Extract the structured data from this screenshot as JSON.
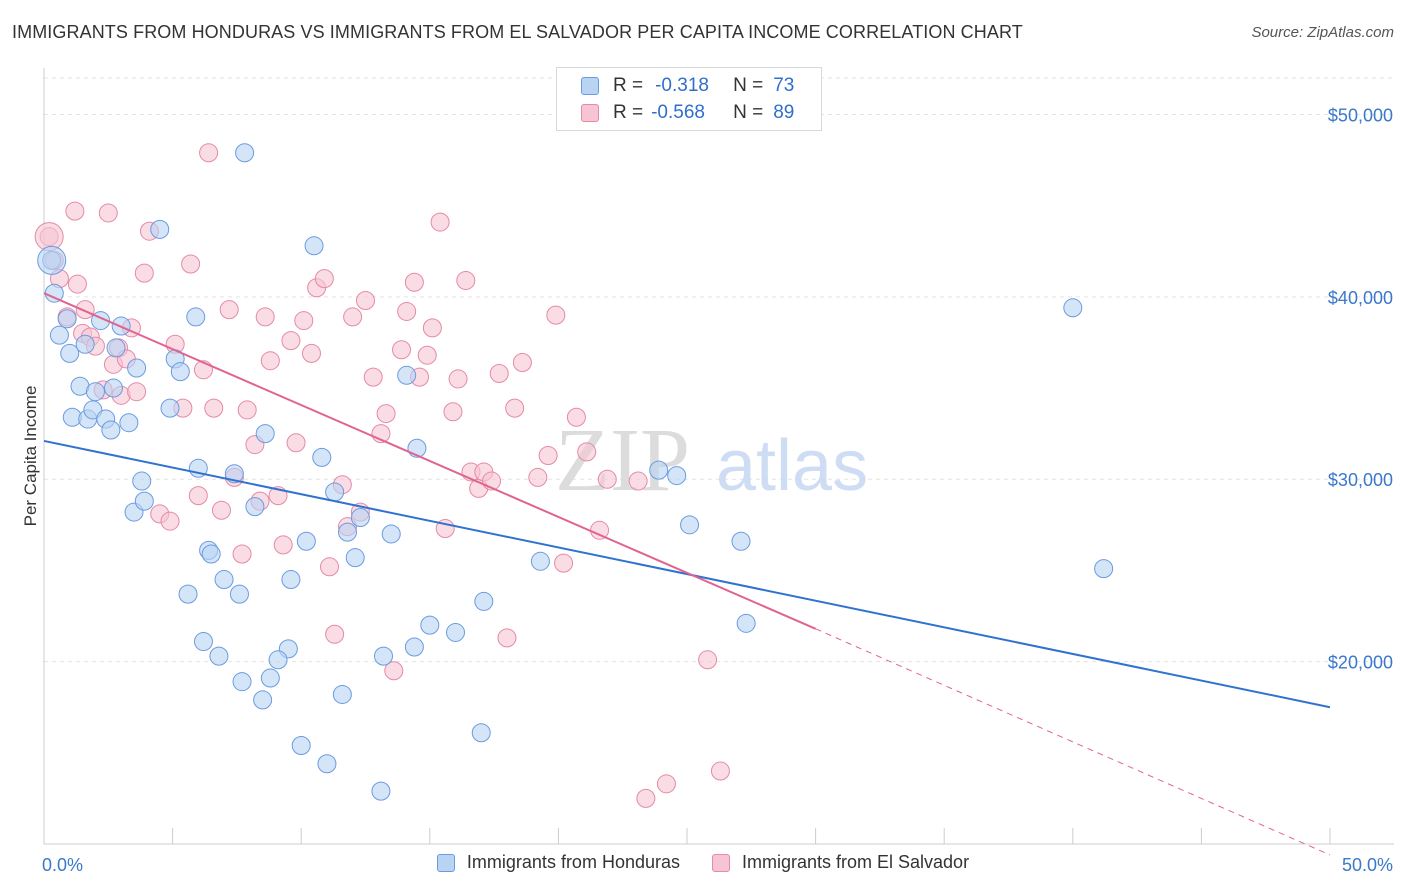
{
  "header": {
    "title": "IMMIGRANTS FROM HONDURAS VS IMMIGRANTS FROM EL SALVADOR PER CAPITA INCOME CORRELATION CHART",
    "source": "Source: ZipAtlas.com"
  },
  "watermark": {
    "zip": "ZIP",
    "atlas": "atlas"
  },
  "legend_top": {
    "rows": [
      {
        "r_label": "R =",
        "r_value": "-0.318",
        "n_label": "N =",
        "n_value": "73"
      },
      {
        "r_label": "R =",
        "r_value": "-0.568",
        "n_label": "N =",
        "n_value": "89"
      }
    ]
  },
  "legend_bottom": {
    "items": [
      {
        "label": "Immigrants from Honduras"
      },
      {
        "label": "Immigrants from El Salvador"
      }
    ]
  },
  "colors": {
    "honduras_fill": "#b9d3f3",
    "honduras_stroke": "#6a9be0",
    "honduras_line": "#2f72d0",
    "elsalvador_fill": "#f7c4d3",
    "elsalvador_stroke": "#e58aa7",
    "elsalvador_line": "#e0648f",
    "tick_label": "#3a78cc",
    "grid": "#e3e3e3"
  },
  "chart_data": {
    "type": "scatter",
    "title": "IMMIGRANTS FROM HONDURAS VS IMMIGRANTS FROM EL SALVADOR PER CAPITA INCOME CORRELATION CHART",
    "ylabel": "Per Capita Income",
    "xlabel": "",
    "xlim": [
      0,
      50
    ],
    "ylim": [
      10000,
      52000
    ],
    "x_tick_labels": [
      "0.0%",
      "50.0%"
    ],
    "y_ticks": [
      20000,
      30000,
      40000,
      50000
    ],
    "y_tick_labels": [
      "$20,000",
      "$30,000",
      "$40,000",
      "$50,000"
    ],
    "grid": true,
    "legend_position": "top-center",
    "series": [
      {
        "name": "Immigrants from Honduras",
        "R": -0.318,
        "N": 73,
        "trend": {
          "x0": 0,
          "y0": 32100,
          "x1": 50,
          "y1": 17500
        },
        "points": [
          [
            0.3,
            42000
          ],
          [
            0.4,
            40200
          ],
          [
            0.6,
            37900
          ],
          [
            0.9,
            38800
          ],
          [
            1.0,
            36900
          ],
          [
            1.1,
            33400
          ],
          [
            1.4,
            35100
          ],
          [
            1.6,
            37400
          ],
          [
            1.7,
            33300
          ],
          [
            1.9,
            33800
          ],
          [
            2.0,
            34800
          ],
          [
            2.2,
            38700
          ],
          [
            2.4,
            33300
          ],
          [
            2.6,
            32700
          ],
          [
            2.7,
            35000
          ],
          [
            2.8,
            37200
          ],
          [
            3.0,
            38400
          ],
          [
            3.3,
            33100
          ],
          [
            3.5,
            28200
          ],
          [
            3.6,
            36100
          ],
          [
            3.8,
            29900
          ],
          [
            3.9,
            28800
          ],
          [
            4.5,
            43700
          ],
          [
            4.9,
            33900
          ],
          [
            5.1,
            36600
          ],
          [
            5.3,
            35900
          ],
          [
            5.6,
            23700
          ],
          [
            5.9,
            38900
          ],
          [
            6.0,
            30600
          ],
          [
            6.2,
            21100
          ],
          [
            6.4,
            26100
          ],
          [
            6.5,
            25900
          ],
          [
            6.8,
            20300
          ],
          [
            7.0,
            24500
          ],
          [
            7.4,
            30300
          ],
          [
            7.6,
            23700
          ],
          [
            7.7,
            18900
          ],
          [
            7.8,
            47900
          ],
          [
            8.2,
            28500
          ],
          [
            8.5,
            17900
          ],
          [
            8.6,
            32500
          ],
          [
            8.8,
            19100
          ],
          [
            9.5,
            20700
          ],
          [
            9.6,
            24500
          ],
          [
            9.1,
            20100
          ],
          [
            10.0,
            15400
          ],
          [
            10.2,
            26600
          ],
          [
            10.5,
            42800
          ],
          [
            10.8,
            31200
          ],
          [
            11.0,
            14400
          ],
          [
            11.3,
            29300
          ],
          [
            11.6,
            18200
          ],
          [
            11.8,
            27100
          ],
          [
            12.1,
            25700
          ],
          [
            12.3,
            27900
          ],
          [
            13.1,
            12900
          ],
          [
            13.2,
            20300
          ],
          [
            13.5,
            27000
          ],
          [
            14.1,
            35700
          ],
          [
            14.4,
            20800
          ],
          [
            14.5,
            31700
          ],
          [
            15.0,
            22000
          ],
          [
            16.0,
            21600
          ],
          [
            17.1,
            23300
          ],
          [
            17.0,
            16100
          ],
          [
            19.3,
            25500
          ],
          [
            23.9,
            30500
          ],
          [
            24.6,
            30200
          ],
          [
            25.1,
            27500
          ],
          [
            27.3,
            22100
          ],
          [
            27.1,
            26600
          ],
          [
            40.0,
            39400
          ],
          [
            41.2,
            25100
          ]
        ]
      },
      {
        "name": "Immigrants from El Salvador",
        "R": -0.568,
        "N": 89,
        "trend": {
          "x0": 0,
          "y0": 40200,
          "x1": 30,
          "y1": 21800
        },
        "trend_dashed": {
          "x0": 30,
          "y0": 21800,
          "x1": 50,
          "y1": 9400
        },
        "points": [
          [
            0.2,
            43300
          ],
          [
            0.4,
            42000
          ],
          [
            0.6,
            41000
          ],
          [
            0.9,
            38900
          ],
          [
            1.2,
            44700
          ],
          [
            1.3,
            40700
          ],
          [
            1.5,
            38000
          ],
          [
            1.6,
            39300
          ],
          [
            1.8,
            37800
          ],
          [
            2.0,
            37300
          ],
          [
            2.3,
            34900
          ],
          [
            2.5,
            44600
          ],
          [
            2.7,
            36300
          ],
          [
            2.9,
            37200
          ],
          [
            3.0,
            34600
          ],
          [
            3.2,
            36600
          ],
          [
            3.4,
            38300
          ],
          [
            3.6,
            34800
          ],
          [
            3.9,
            41300
          ],
          [
            4.1,
            43600
          ],
          [
            4.5,
            28100
          ],
          [
            4.9,
            27700
          ],
          [
            5.1,
            37400
          ],
          [
            5.4,
            33900
          ],
          [
            5.7,
            41800
          ],
          [
            6.0,
            29100
          ],
          [
            6.2,
            36000
          ],
          [
            6.4,
            47900
          ],
          [
            6.6,
            33900
          ],
          [
            6.9,
            28300
          ],
          [
            7.2,
            39300
          ],
          [
            7.4,
            30100
          ],
          [
            7.7,
            25900
          ],
          [
            7.9,
            33800
          ],
          [
            8.2,
            31900
          ],
          [
            8.4,
            28800
          ],
          [
            8.6,
            38900
          ],
          [
            8.8,
            36500
          ],
          [
            9.1,
            29100
          ],
          [
            9.3,
            26400
          ],
          [
            9.6,
            37600
          ],
          [
            9.8,
            32000
          ],
          [
            10.1,
            38700
          ],
          [
            10.4,
            36900
          ],
          [
            10.6,
            40500
          ],
          [
            10.9,
            41000
          ],
          [
            11.1,
            25200
          ],
          [
            11.3,
            21500
          ],
          [
            11.6,
            29700
          ],
          [
            11.8,
            27400
          ],
          [
            12.0,
            38900
          ],
          [
            12.3,
            28200
          ],
          [
            12.5,
            39800
          ],
          [
            12.8,
            35600
          ],
          [
            13.1,
            32500
          ],
          [
            13.3,
            33600
          ],
          [
            13.6,
            19500
          ],
          [
            13.9,
            37100
          ],
          [
            14.1,
            39200
          ],
          [
            14.4,
            40800
          ],
          [
            14.6,
            35600
          ],
          [
            14.9,
            36800
          ],
          [
            15.1,
            38300
          ],
          [
            15.4,
            44100
          ],
          [
            15.6,
            27300
          ],
          [
            15.9,
            33700
          ],
          [
            16.1,
            35500
          ],
          [
            16.4,
            40900
          ],
          [
            16.6,
            30400
          ],
          [
            16.9,
            29500
          ],
          [
            17.1,
            30400
          ],
          [
            17.4,
            29900
          ],
          [
            17.7,
            35800
          ],
          [
            18.0,
            21300
          ],
          [
            18.3,
            33900
          ],
          [
            18.6,
            36400
          ],
          [
            19.2,
            30100
          ],
          [
            19.6,
            31300
          ],
          [
            19.9,
            39000
          ],
          [
            20.2,
            25400
          ],
          [
            20.7,
            33400
          ],
          [
            21.1,
            31500
          ],
          [
            21.6,
            27200
          ],
          [
            21.9,
            30000
          ],
          [
            23.4,
            12500
          ],
          [
            24.2,
            13300
          ],
          [
            25.8,
            20100
          ],
          [
            26.3,
            14000
          ],
          [
            23.1,
            29900
          ]
        ]
      }
    ]
  }
}
